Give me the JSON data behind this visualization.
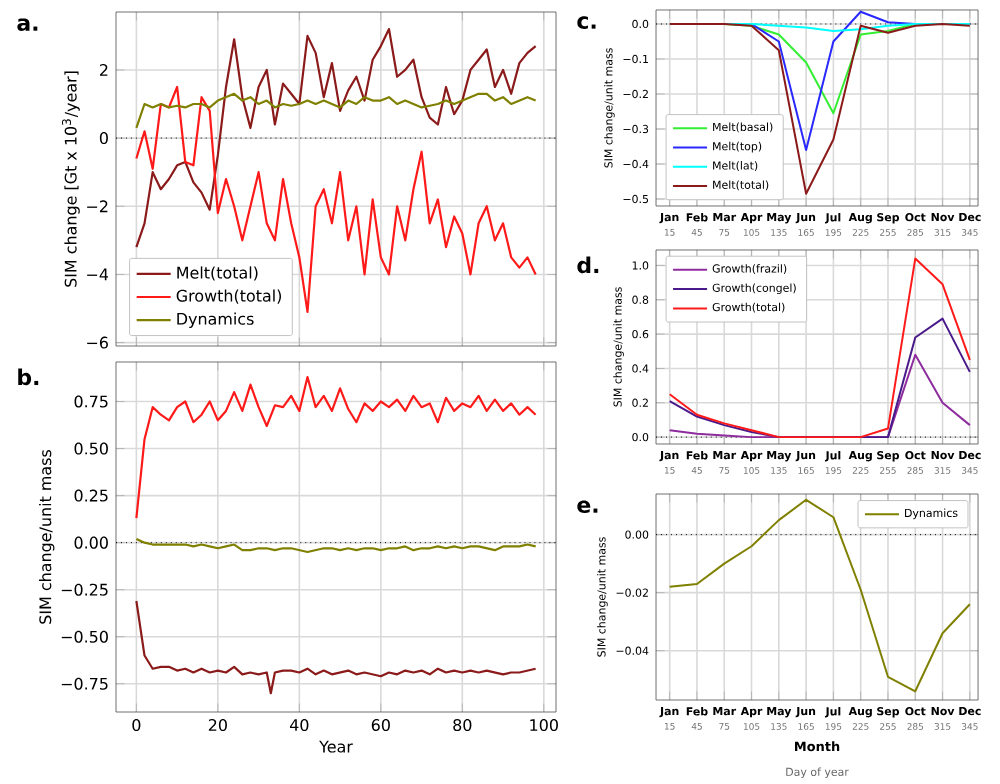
{
  "chart_data": [
    {
      "type": "line",
      "title": "a.",
      "ylabel": "SIM change [Gt x 10$^{3}$/year]",
      "xlim": [
        -5,
        103
      ],
      "ylim": [
        -6.1,
        3.7
      ],
      "xticks": [
        0,
        20,
        40,
        60,
        80,
        100
      ],
      "yticks": [
        {
          "value": -6,
          "label": "−6"
        },
        {
          "value": -4,
          "label": "−4"
        },
        {
          "value": -2,
          "label": "−2"
        },
        0,
        2
      ],
      "tick_labels": "y",
      "grid": true,
      "legend": "bottom left",
      "ref_lines": [
        {
          "axis": "y",
          "value": 0,
          "color": "#000000",
          "line_style": "dotted"
        }
      ],
      "x": [
        0,
        2,
        4,
        6,
        8,
        10,
        12,
        14,
        16,
        18,
        20,
        22,
        24,
        26,
        28,
        30,
        32,
        34,
        36,
        38,
        40,
        42,
        44,
        46,
        48,
        50,
        52,
        54,
        56,
        58,
        60,
        62,
        64,
        66,
        68,
        70,
        72,
        74,
        76,
        78,
        80,
        82,
        84,
        86,
        88,
        90,
        92,
        94,
        96,
        98
      ],
      "series": [
        {
          "name": "Melt(total)",
          "color": "#8b1a1a",
          "values": [
            -3.2,
            -2.5,
            -1.0,
            -1.5,
            -1.2,
            -0.8,
            -0.7,
            -1.3,
            -1.6,
            -2.1,
            -0.5,
            1.5,
            2.9,
            1.2,
            0.3,
            1.5,
            2.0,
            0.4,
            1.6,
            1.3,
            1.0,
            3.0,
            2.5,
            1.2,
            2.2,
            0.8,
            1.4,
            1.8,
            1.1,
            2.3,
            2.7,
            3.2,
            1.8,
            2.0,
            2.3,
            1.2,
            0.6,
            0.4,
            1.5,
            0.7,
            1.1,
            2.0,
            2.3,
            2.6,
            1.5,
            2.0,
            1.3,
            2.2,
            2.5,
            2.7
          ]
        },
        {
          "name": "Growth(total)",
          "color": "#ff1a1a",
          "values": [
            -0.6,
            0.2,
            -0.9,
            1.0,
            0.9,
            1.5,
            -0.7,
            -0.8,
            1.2,
            0.8,
            -2.2,
            -1.2,
            -2.0,
            -3.0,
            null,
            -1.0,
            -2.5,
            -3.0,
            -1.2,
            -2.5,
            -3.5,
            -5.1,
            -2.0,
            -1.5,
            -2.5,
            -1.0,
            -3.0,
            -2.0,
            -4.0,
            -1.8,
            -3.5,
            -4.0,
            -2.0,
            -3.0,
            -1.5,
            -0.4,
            -2.5,
            -1.8,
            -3.2,
            -2.3,
            -2.8,
            -4.0,
            -2.5,
            -2.0,
            -3.0,
            -2.5,
            -3.5,
            -3.8,
            -3.5,
            -4.0
          ]
        },
        {
          "name": "Dynamics",
          "color": "#808000",
          "values": [
            0.3,
            1.0,
            0.9,
            1.0,
            0.9,
            0.95,
            0.9,
            1.0,
            1.0,
            0.9,
            1.1,
            1.2,
            1.3,
            1.1,
            1.2,
            1.0,
            1.1,
            0.9,
            1.0,
            0.95,
            1.0,
            1.1,
            1.0,
            1.1,
            1.0,
            0.9,
            1.1,
            1.0,
            1.2,
            1.1,
            1.1,
            1.2,
            1.0,
            1.1,
            1.0,
            0.9,
            0.95,
            1.0,
            1.1,
            1.0,
            1.1,
            1.2,
            1.3,
            1.3,
            1.1,
            1.2,
            1.0,
            1.1,
            1.2,
            1.1
          ]
        }
      ]
    },
    {
      "type": "line",
      "title": "b.",
      "xlabel": "Year",
      "ylabel": "SIM change/unit mass",
      "xlim": [
        -5,
        103
      ],
      "ylim": [
        -0.9,
        0.96
      ],
      "xticks": [
        0,
        20,
        40,
        60,
        80,
        100
      ],
      "yticks": [
        {
          "value": -0.75,
          "label": "−0.75"
        },
        {
          "value": -0.5,
          "label": "−0.50"
        },
        {
          "value": -0.25,
          "label": "−0.25"
        },
        {
          "value": 0,
          "label": "0.00"
        },
        {
          "value": 0.25,
          "label": "0.25"
        },
        {
          "value": 0.5,
          "label": "0.50"
        },
        {
          "value": 0.75,
          "label": "0.75"
        }
      ],
      "grid": true,
      "ref_lines": [
        {
          "axis": "y",
          "value": 0,
          "color": "#000000",
          "line_style": "dotted"
        }
      ],
      "x": [
        0,
        2,
        4,
        6,
        8,
        10,
        12,
        14,
        16,
        18,
        20,
        22,
        24,
        26,
        28,
        30,
        32,
        34,
        36,
        38,
        40,
        42,
        44,
        46,
        48,
        50,
        52,
        54,
        56,
        58,
        60,
        62,
        64,
        66,
        68,
        70,
        72,
        74,
        76,
        78,
        80,
        82,
        84,
        86,
        88,
        90,
        92,
        94,
        96,
        98
      ],
      "series": [
        {
          "color": "#8b1a1a",
          "x": [
            0,
            2,
            4,
            6,
            8,
            10,
            12,
            14,
            16,
            18,
            20,
            22,
            24,
            26,
            28,
            30,
            32,
            33,
            34,
            36,
            38,
            40,
            42,
            44,
            46,
            48,
            50,
            52,
            54,
            56,
            58,
            60,
            62,
            64,
            66,
            68,
            70,
            72,
            74,
            76,
            78,
            80,
            82,
            84,
            86,
            88,
            90,
            92,
            94,
            96,
            98
          ],
          "values": [
            -0.31,
            -0.6,
            -0.67,
            -0.66,
            -0.66,
            -0.68,
            -0.67,
            -0.69,
            -0.67,
            -0.69,
            -0.68,
            -0.69,
            -0.66,
            -0.7,
            -0.69,
            -0.7,
            -0.69,
            -0.8,
            -0.69,
            -0.68,
            -0.68,
            -0.69,
            -0.67,
            -0.7,
            -0.68,
            -0.7,
            -0.69,
            -0.68,
            -0.7,
            -0.69,
            -0.7,
            -0.71,
            -0.69,
            -0.7,
            -0.68,
            -0.69,
            -0.68,
            -0.7,
            -0.67,
            -0.69,
            -0.68,
            -0.69,
            -0.68,
            -0.69,
            -0.68,
            -0.69,
            -0.7,
            -0.69,
            -0.69,
            -0.68,
            -0.67
          ]
        },
        {
          "color": "#ff1a1a",
          "values": [
            0.13,
            0.55,
            0.72,
            0.68,
            0.65,
            0.72,
            0.75,
            0.64,
            0.68,
            0.75,
            0.65,
            0.7,
            0.8,
            0.7,
            0.84,
            0.72,
            0.62,
            0.73,
            0.72,
            0.78,
            0.7,
            0.88,
            0.72,
            0.78,
            0.7,
            0.82,
            0.71,
            0.64,
            0.74,
            0.7,
            0.75,
            0.72,
            0.76,
            0.7,
            0.78,
            0.72,
            0.74,
            0.64,
            0.77,
            0.7,
            0.74,
            0.72,
            0.78,
            0.7,
            0.76,
            0.7,
            0.74,
            0.68,
            0.72,
            0.68
          ]
        },
        {
          "color": "#808000",
          "values": [
            0.02,
            0.0,
            -0.01,
            -0.01,
            -0.01,
            -0.01,
            -0.01,
            -0.02,
            -0.01,
            -0.02,
            -0.03,
            -0.02,
            -0.01,
            -0.04,
            -0.04,
            -0.03,
            -0.03,
            -0.04,
            -0.03,
            -0.03,
            -0.04,
            -0.05,
            -0.04,
            -0.03,
            -0.03,
            -0.04,
            -0.03,
            -0.04,
            -0.03,
            -0.03,
            -0.04,
            -0.03,
            -0.03,
            -0.02,
            -0.04,
            -0.03,
            -0.03,
            -0.02,
            -0.03,
            -0.02,
            -0.03,
            -0.02,
            -0.02,
            -0.03,
            -0.04,
            -0.02,
            -0.02,
            -0.02,
            -0.01,
            -0.02
          ]
        }
      ]
    },
    {
      "type": "line",
      "title": "c.",
      "ylabel": "SIM change/unit mass",
      "categories": [
        "Jan",
        "Feb",
        "Mar",
        "Apr",
        "May",
        "Jun",
        "Jul",
        "Aug",
        "Sep",
        "Oct",
        "Nov",
        "Dec"
      ],
      "x2lim": [
        0,
        354
      ],
      "x2ticks": [
        15,
        45,
        75,
        105,
        135,
        165,
        195,
        225,
        255,
        285,
        315,
        345
      ],
      "ylim": [
        -0.52,
        0.04
      ],
      "yticks": [
        {
          "value": -0.5,
          "label": "−0.5"
        },
        {
          "value": -0.4,
          "label": "−0.4"
        },
        {
          "value": -0.3,
          "label": "−0.3"
        },
        {
          "value": -0.2,
          "label": "−0.2"
        },
        {
          "value": -0.1,
          "label": "−0.1"
        },
        {
          "value": 0,
          "label": "0.0"
        }
      ],
      "grid": true,
      "legend": "bottom left",
      "ref_lines": [
        {
          "axis": "y",
          "value": 0,
          "color": "#000000",
          "line_style": "dotted"
        }
      ],
      "series": [
        {
          "name": "Melt(basal)",
          "color": "#33ee33",
          "values": [
            null,
            null,
            0,
            -0.005,
            -0.03,
            -0.11,
            -0.255,
            -0.03,
            -0.02,
            0,
            0,
            0
          ]
        },
        {
          "name": "Melt(top)",
          "color": "#2828ff",
          "values": [
            null,
            null,
            0,
            0,
            -0.05,
            -0.36,
            -0.05,
            0.035,
            0.005,
            0,
            0,
            0
          ]
        },
        {
          "name": "Melt(lat)",
          "color": "#00ffff",
          "values": [
            0,
            0,
            0,
            0,
            -0.005,
            -0.01,
            -0.02,
            -0.015,
            -0.005,
            0,
            0,
            0
          ]
        },
        {
          "name": "Melt(total)",
          "color": "#8b1a1a",
          "values": [
            0,
            0,
            0,
            -0.005,
            -0.075,
            -0.485,
            -0.33,
            -0.005,
            -0.025,
            -0.005,
            0,
            -0.005
          ]
        }
      ]
    },
    {
      "type": "line",
      "title": "d.",
      "ylabel": "SIM change/unit mass",
      "categories": [
        "Jan",
        "Feb",
        "Mar",
        "Apr",
        "May",
        "Jun",
        "Jul",
        "Aug",
        "Sep",
        "Oct",
        "Nov",
        "Dec"
      ],
      "x2lim": [
        0,
        354
      ],
      "x2ticks": [
        15,
        45,
        75,
        105,
        135,
        165,
        195,
        225,
        255,
        285,
        315,
        345
      ],
      "ylim": [
        -0.04,
        1.09
      ],
      "yticks": [
        {
          "value": 0,
          "label": "0.0"
        },
        {
          "value": 0.2,
          "label": "0.2"
        },
        {
          "value": 0.4,
          "label": "0.4"
        },
        {
          "value": 0.6,
          "label": "0.6"
        },
        {
          "value": 0.8,
          "label": "0.8"
        },
        {
          "value": 1,
          "label": "1.0"
        }
      ],
      "grid": true,
      "legend": "top left",
      "ref_lines": [
        {
          "axis": "y",
          "value": 0,
          "color": "#000000",
          "line_style": "dotted"
        }
      ],
      "series": [
        {
          "name": "Growth(frazil)",
          "color": "#8e2c9e",
          "values": [
            0.04,
            0.02,
            0.01,
            0,
            0,
            0,
            0,
            0,
            0,
            0.48,
            0.2,
            0.07
          ]
        },
        {
          "name": "Growth(congel)",
          "color": "#4b1a8a",
          "values": [
            0.21,
            0.12,
            0.07,
            0.03,
            0,
            0,
            0,
            0,
            0,
            0.58,
            0.69,
            0.38
          ]
        },
        {
          "name": "Growth(total)",
          "color": "#ff1a1a",
          "values": [
            0.25,
            0.13,
            0.08,
            0.04,
            0,
            0,
            0,
            0,
            0.05,
            1.04,
            0.89,
            0.45
          ]
        }
      ]
    },
    {
      "type": "line",
      "title": "e.",
      "xlabel": "Month",
      "x2label": "Day of year",
      "ylabel": "SIM change/unit mass",
      "categories": [
        "Jan",
        "Feb",
        "Mar",
        "Apr",
        "May",
        "Jun",
        "Jul",
        "Aug",
        "Sep",
        "Oct",
        "Nov",
        "Dec"
      ],
      "x2lim": [
        0,
        354
      ],
      "x2ticks": [
        15,
        45,
        75,
        105,
        135,
        165,
        195,
        225,
        255,
        285,
        315,
        345
      ],
      "ylim": [
        -0.057,
        0.014
      ],
      "yticks": [
        {
          "value": -0.04,
          "label": "−0.04"
        },
        {
          "value": -0.02,
          "label": "−0.02"
        },
        {
          "value": 0,
          "label": "0.00"
        }
      ],
      "grid": true,
      "legend": "top right",
      "ref_lines": [
        {
          "axis": "y",
          "value": 0,
          "color": "#000000",
          "line_style": "dotted"
        }
      ],
      "series": [
        {
          "name": "Dynamics",
          "color": "#808000",
          "values": [
            -0.018,
            -0.017,
            -0.01,
            -0.004,
            0.005,
            0.012,
            0.006,
            -0.019,
            -0.049,
            -0.054,
            -0.034,
            -0.024
          ]
        }
      ]
    }
  ]
}
